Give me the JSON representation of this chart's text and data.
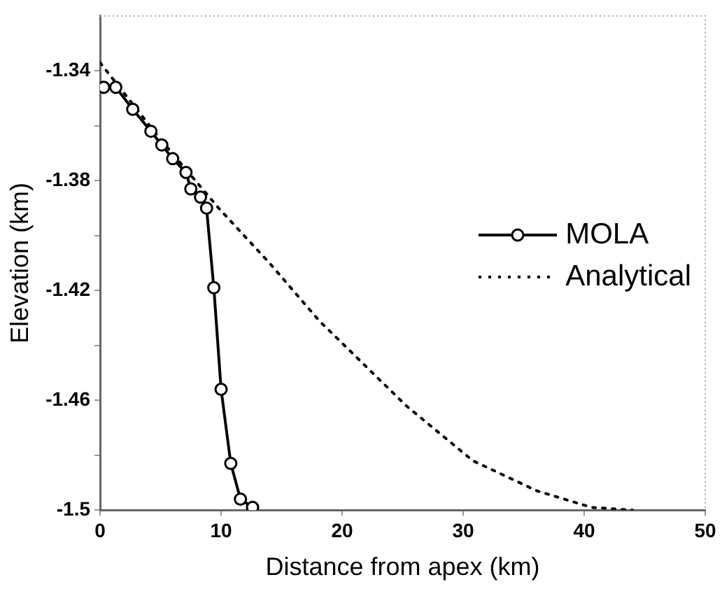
{
  "chart_data": {
    "type": "line",
    "xlabel": "Distance from apex (km)",
    "ylabel": "Elevation (km)",
    "xlim": [
      0,
      50
    ],
    "xticks": [
      0,
      10,
      20,
      30,
      40,
      50
    ],
    "ylim": [
      -1.5,
      -1.32
    ],
    "yticks": [
      -1.5,
      {
        "value": -1.48,
        "label": null
      },
      -1.46,
      {
        "value": -1.44,
        "label": null
      },
      -1.42,
      {
        "value": -1.4,
        "label": null
      },
      -1.38,
      {
        "value": -1.36,
        "label": null
      },
      -1.34
    ],
    "grid": false,
    "legend": "right",
    "series": [
      {
        "name": "MOLA",
        "color": "#000000",
        "marker": "circle",
        "line_style": "solid",
        "x": [
          0.3,
          1.3,
          2.7,
          4.2,
          5.1,
          6.0,
          7.1,
          7.5,
          8.3,
          8.8,
          9.4,
          10.0,
          10.8,
          11.6,
          12.6
        ],
        "values": [
          -1.346,
          -1.346,
          -1.354,
          -1.362,
          -1.367,
          -1.372,
          -1.377,
          -1.383,
          -1.386,
          -1.39,
          -1.419,
          -1.456,
          -1.483,
          -1.496,
          -1.499
        ]
      },
      {
        "name": "Analytical",
        "color": "#000000",
        "marker": "none",
        "line_style": "dotted",
        "x": [
          0,
          5,
          9.8,
          14,
          18.1,
          25.3,
          30.8,
          36.1,
          40.6,
          44.0
        ],
        "values": [
          -1.337,
          -1.365,
          -1.39,
          -1.41,
          -1.431,
          -1.462,
          -1.482,
          -1.493,
          -1.499,
          -1.5
        ]
      }
    ]
  }
}
